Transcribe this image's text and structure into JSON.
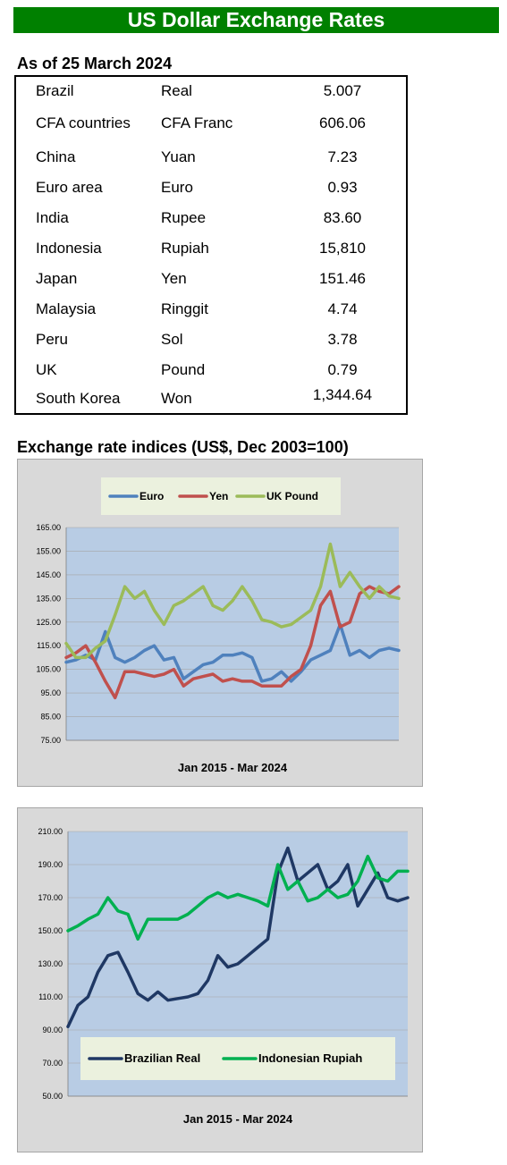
{
  "title": "US Dollar Exchange Rates",
  "as_of": "As of 25 March 2024",
  "rates": [
    {
      "country": "Brazil",
      "currency": "Real",
      "value": "5.007"
    },
    {
      "country": "CFA countries",
      "currency": "CFA Franc",
      "value": "606.06"
    },
    {
      "country": "China",
      "currency": "Yuan",
      "value": "7.23"
    },
    {
      "country": "Euro area",
      "currency": "Euro",
      "value": "0.93"
    },
    {
      "country": "India",
      "currency": "Rupee",
      "value": "83.60"
    },
    {
      "country": "Indonesia",
      "currency": "Rupiah",
      "value": "15,810"
    },
    {
      "country": "Japan",
      "currency": "Yen",
      "value": "151.46"
    },
    {
      "country": "Malaysia",
      "currency": "Ringgit",
      "value": "4.74"
    },
    {
      "country": "Peru",
      "currency": "Sol",
      "value": "3.78"
    },
    {
      "country": "UK",
      "currency": "Pound",
      "value": "0.79"
    },
    {
      "country": "South Korea",
      "currency": "Won",
      "value": "1,344.64"
    }
  ],
  "indices_title": "Exchange rate indices (US$, Dec 2003=100)",
  "chart_data": [
    {
      "type": "line",
      "xlabel": "Jan 2015 - Mar 2024",
      "ylim": [
        75,
        165
      ],
      "yticks": [
        "165.00",
        "155.00",
        "145.00",
        "135.00",
        "125.00",
        "115.00",
        "105.00",
        "95.00",
        "85.00",
        "75.00"
      ],
      "grid": true,
      "legend_position": "top",
      "series": [
        {
          "name": "Euro",
          "color": "#4f81bd",
          "values": [
            108,
            109,
            111,
            109,
            121,
            110,
            108,
            110,
            113,
            115,
            109,
            110,
            101,
            104,
            107,
            108,
            111,
            111,
            112,
            110,
            100,
            101,
            104,
            100,
            104,
            109,
            111,
            113,
            124,
            111,
            113,
            110,
            113,
            114,
            113
          ]
        },
        {
          "name": "Yen",
          "color": "#c0504d",
          "values": [
            110,
            112,
            115,
            108,
            100,
            93,
            104,
            104,
            103,
            102,
            103,
            105,
            98,
            101,
            102,
            103,
            100,
            101,
            100,
            100,
            98,
            98,
            98,
            102,
            105,
            115,
            132,
            138,
            123,
            125,
            137,
            140,
            138,
            137,
            140
          ]
        },
        {
          "name": "UK Pound",
          "color": "#9bbb59",
          "values": [
            116,
            110,
            110,
            114,
            117,
            128,
            140,
            135,
            138,
            130,
            124,
            132,
            134,
            137,
            140,
            132,
            130,
            134,
            140,
            134,
            126,
            125,
            123,
            124,
            127,
            130,
            140,
            158,
            140,
            146,
            140,
            135,
            140,
            136,
            135
          ]
        }
      ]
    },
    {
      "type": "line",
      "xlabel": "Jan 2015 - Mar 2024",
      "ylim": [
        50,
        210
      ],
      "yticks": [
        "210.00",
        "190.00",
        "170.00",
        "150.00",
        "130.00",
        "110.00",
        "90.00",
        "70.00",
        "50.00"
      ],
      "grid": true,
      "legend_position": "bottom",
      "series": [
        {
          "name": "Brazilian Real",
          "color": "#1f3864",
          "values": [
            92,
            105,
            110,
            125,
            135,
            137,
            125,
            112,
            108,
            113,
            108,
            109,
            110,
            112,
            120,
            135,
            128,
            130,
            135,
            140,
            145,
            185,
            200,
            180,
            185,
            190,
            175,
            180,
            190,
            165,
            175,
            185,
            170,
            168,
            170
          ]
        },
        {
          "name": "Indonesian Rupiah",
          "color": "#00b050",
          "values": [
            150,
            153,
            157,
            160,
            170,
            162,
            160,
            145,
            157,
            157,
            157,
            157,
            160,
            165,
            170,
            173,
            170,
            172,
            170,
            168,
            165,
            190,
            175,
            180,
            168,
            170,
            175,
            170,
            172,
            180,
            195,
            182,
            180,
            186,
            186
          ]
        }
      ]
    }
  ]
}
